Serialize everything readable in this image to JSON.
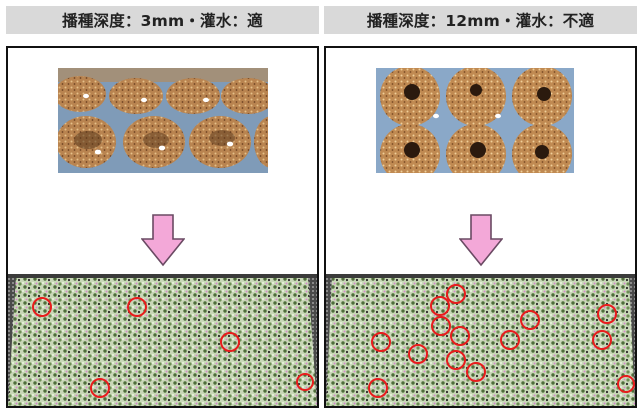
{
  "panels": [
    {
      "label": "播種深度：3mm・灌水：適",
      "photo": {
        "style": "top view of seeded cells, shallow",
        "pit": "light",
        "seed_color": "#ffffff"
      },
      "result": {
        "highlighted_marks": 5,
        "mark_color": "#e81c1c"
      }
    },
    {
      "label": "播種深度：12mm・灌水：不適",
      "photo": {
        "style": "top view of seeded cells, deep",
        "pit": "dark",
        "seed_color": "#ffffff"
      },
      "result": {
        "highlighted_marks": 13,
        "mark_color": "#e81c1c"
      }
    }
  ],
  "colors": {
    "header_bg": "#d9d9d9",
    "arrow_fill": "#f3a8d8",
    "arrow_stroke": "#6a4a63",
    "soil": "#b27a44",
    "tray": "#8aa8c8",
    "leaf": "#9fd48a",
    "mark": "#e81c1c"
  },
  "icons": [
    "down-arrow-icon",
    "red-circle-icon"
  ]
}
